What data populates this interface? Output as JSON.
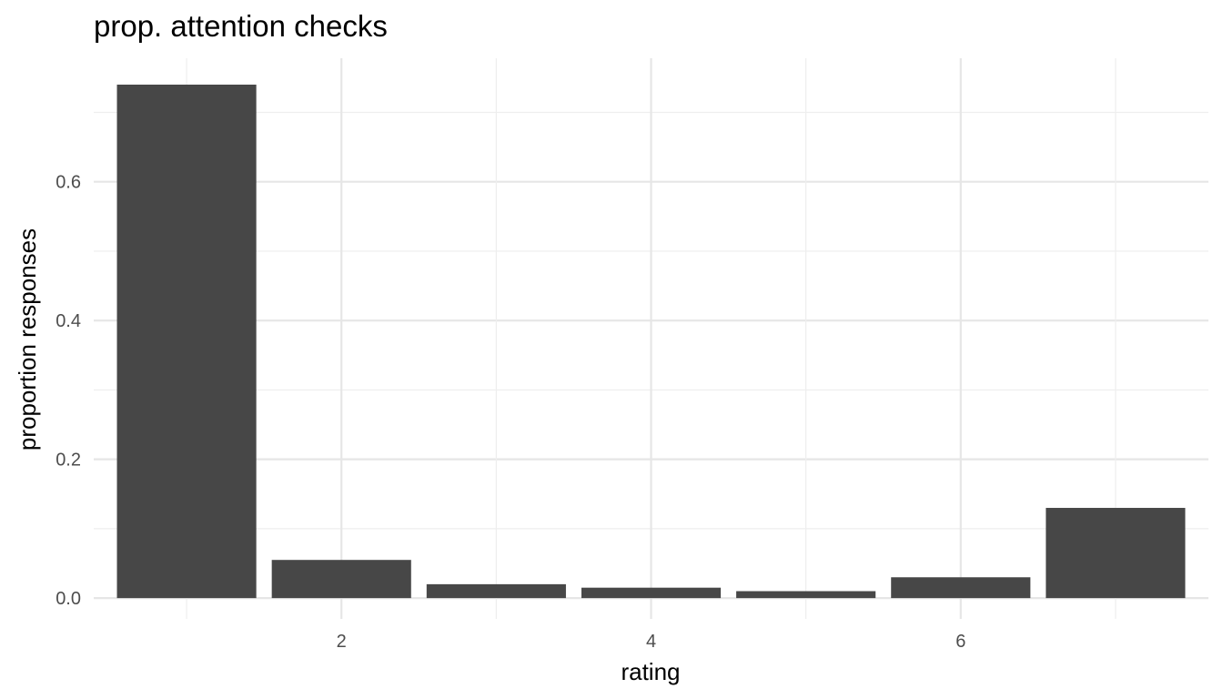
{
  "chart_data": {
    "type": "bar",
    "title": "prop. attention checks",
    "xlabel": "rating",
    "ylabel": "proportion responses",
    "categories": [
      1,
      2,
      3,
      4,
      5,
      6,
      7
    ],
    "values": [
      0.74,
      0.055,
      0.02,
      0.015,
      0.01,
      0.03,
      0.13
    ],
    "xlim": [
      0.4,
      7.6
    ],
    "ylim": [
      -0.03,
      0.778
    ],
    "x_ticks": [
      2,
      4,
      6
    ],
    "x_tick_labels": [
      "2",
      "4",
      "6"
    ],
    "y_ticks": [
      0.0,
      0.2,
      0.4,
      0.6
    ],
    "y_tick_labels": [
      "0.0",
      "0.2",
      "0.4",
      "0.6"
    ],
    "grid": true,
    "bar_color": "#474747",
    "background": "#ffffff"
  }
}
